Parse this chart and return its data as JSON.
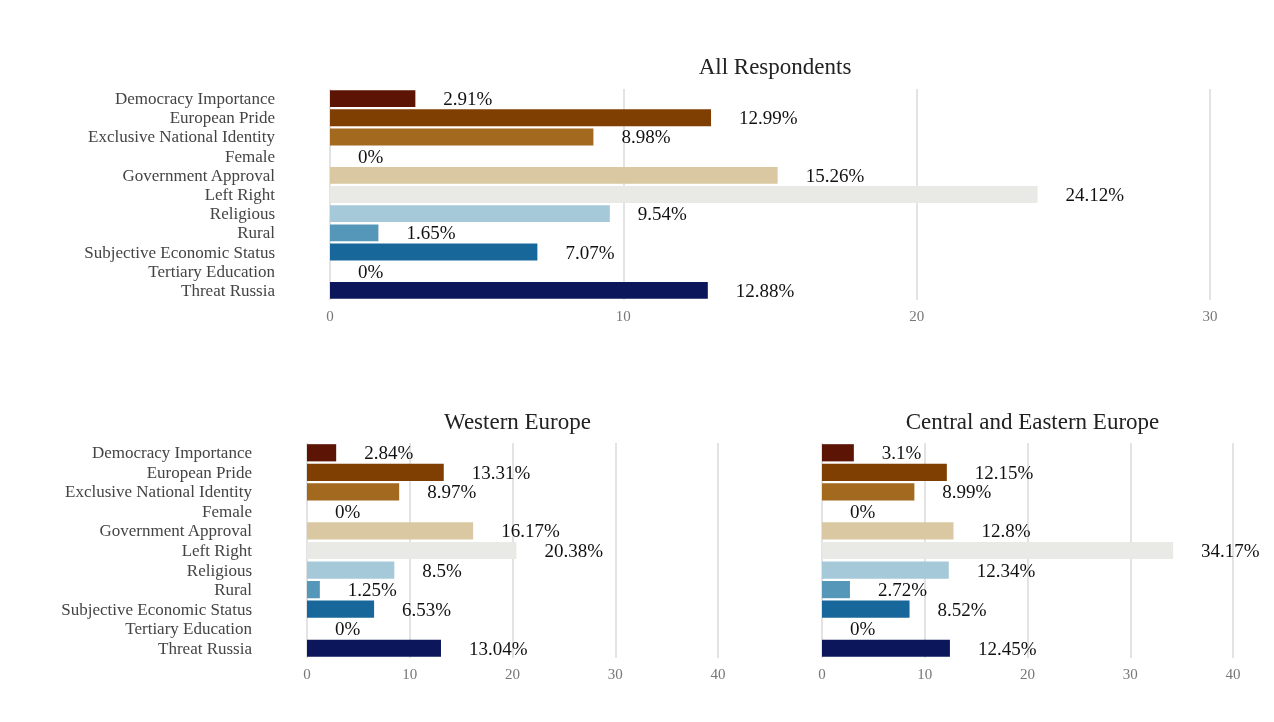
{
  "chart_data": [
    {
      "type": "bar",
      "orientation": "horizontal",
      "title": "All Respondents",
      "categories": [
        "Democracy Importance",
        "European Pride",
        "Exclusive National Identity",
        "Female",
        "Government Approval",
        "Left Right",
        "Religious",
        "Rural",
        "Subjective Economic Status",
        "Tertiary Education",
        "Threat Russia"
      ],
      "values": [
        2.91,
        12.99,
        8.98,
        0,
        15.26,
        24.12,
        9.54,
        1.65,
        7.07,
        0,
        12.88
      ],
      "value_labels": [
        "2.91%",
        "12.99%",
        "8.98%",
        "0%",
        "15.26%",
        "24.12%",
        "9.54%",
        "1.65%",
        "7.07%",
        "0%",
        "12.88%"
      ],
      "colors": [
        "#5c1505",
        "#7f3e02",
        "#a2691f",
        "#d4b36e",
        "#d9c8a2",
        "#e9eae6",
        "#a6c9da",
        "#5597b9",
        "#17679b",
        "#2f4f8c",
        "#0b175a"
      ],
      "xlim": [
        0,
        30
      ],
      "xticks": [
        0,
        10,
        20,
        30
      ],
      "grid": "x"
    },
    {
      "type": "bar",
      "orientation": "horizontal",
      "title": "Western Europe",
      "categories": [
        "Democracy Importance",
        "European Pride",
        "Exclusive National Identity",
        "Female",
        "Government Approval",
        "Left Right",
        "Religious",
        "Rural",
        "Subjective Economic Status",
        "Tertiary Education",
        "Threat Russia"
      ],
      "values": [
        2.84,
        13.31,
        8.97,
        0,
        16.17,
        20.38,
        8.5,
        1.25,
        6.53,
        0,
        13.04
      ],
      "value_labels": [
        "2.84%",
        "13.31%",
        "8.97%",
        "0%",
        "16.17%",
        "20.38%",
        "8.5%",
        "1.25%",
        "6.53%",
        "0%",
        "13.04%"
      ],
      "colors": [
        "#5c1505",
        "#7f3e02",
        "#a2691f",
        "#d4b36e",
        "#d9c8a2",
        "#e9eae6",
        "#a6c9da",
        "#5597b9",
        "#17679b",
        "#2f4f8c",
        "#0b175a"
      ],
      "xlim": [
        0,
        40
      ],
      "xticks": [
        0,
        10,
        20,
        30,
        40
      ],
      "grid": "x"
    },
    {
      "type": "bar",
      "orientation": "horizontal",
      "title": "Central and Eastern Europe",
      "categories": [
        null,
        null,
        null,
        null,
        null,
        null,
        null,
        null,
        null,
        null,
        null
      ],
      "values": [
        3.1,
        12.15,
        8.99,
        0,
        12.8,
        34.17,
        12.34,
        2.72,
        8.52,
        0,
        12.45
      ],
      "value_labels": [
        "3.1%",
        "12.15%",
        "8.99%",
        "0%",
        "12.8%",
        "34.17%",
        "12.34%",
        "2.72%",
        "8.52%",
        "0%",
        "12.45%"
      ],
      "colors": [
        "#5c1505",
        "#7f3e02",
        "#a2691f",
        "#d4b36e",
        "#d9c8a2",
        "#e9eae6",
        "#a6c9da",
        "#5597b9",
        "#17679b",
        "#2f4f8c",
        "#0b175a"
      ],
      "xlim": [
        0,
        40
      ],
      "xticks": [
        0,
        10,
        20,
        30,
        40
      ],
      "grid": "x"
    }
  ]
}
